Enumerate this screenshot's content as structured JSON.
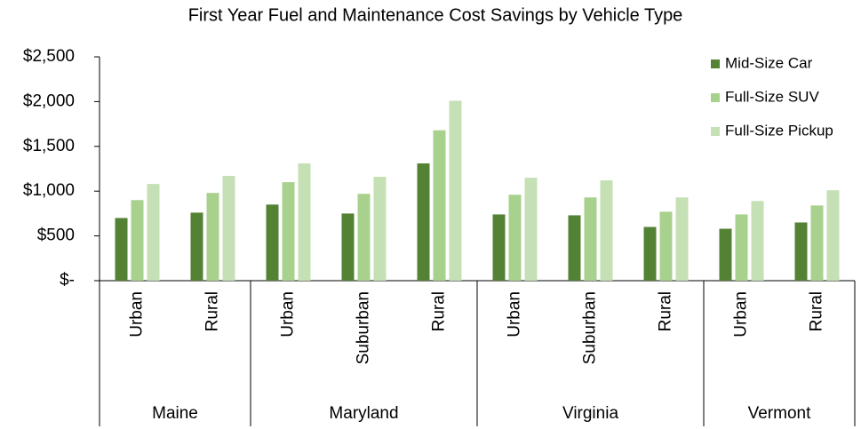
{
  "chart_data": {
    "type": "bar",
    "title": "First Year Fuel and Maintenance Cost Savings by Vehicle Type",
    "groups": [
      {
        "name": "Maine",
        "categories": [
          "Urban",
          "Rural"
        ]
      },
      {
        "name": "Maryland",
        "categories": [
          "Urban",
          "Suburban",
          "Rural"
        ]
      },
      {
        "name": "Virginia",
        "categories": [
          "Urban",
          "Suburban",
          "Rural"
        ]
      },
      {
        "name": "Vermont",
        "categories": [
          "Urban",
          "Rural"
        ]
      }
    ],
    "series": [
      {
        "name": "Mid-Size Car",
        "color": "#548235",
        "values": [
          700,
          760,
          850,
          750,
          1310,
          740,
          730,
          600,
          580,
          650
        ]
      },
      {
        "name": "Full-Size SUV",
        "color": "#a9d18e",
        "values": [
          900,
          980,
          1100,
          970,
          1680,
          960,
          930,
          770,
          740,
          840
        ]
      },
      {
        "name": "Full-Size Pickup",
        "color": "#c5e0b4",
        "values": [
          1080,
          1170,
          1310,
          1160,
          2010,
          1150,
          1120,
          930,
          890,
          1010
        ]
      }
    ],
    "ylim": [
      0,
      2500
    ],
    "yticks": [
      {
        "value": 0,
        "label": "$-"
      },
      {
        "value": 500,
        "label": "$500"
      },
      {
        "value": 1000,
        "label": "$1,000"
      },
      {
        "value": 1500,
        "label": "$1,500"
      },
      {
        "value": 2000,
        "label": "$2,000"
      },
      {
        "value": 2500,
        "label": "$2,500"
      }
    ],
    "legend": "top-right"
  }
}
